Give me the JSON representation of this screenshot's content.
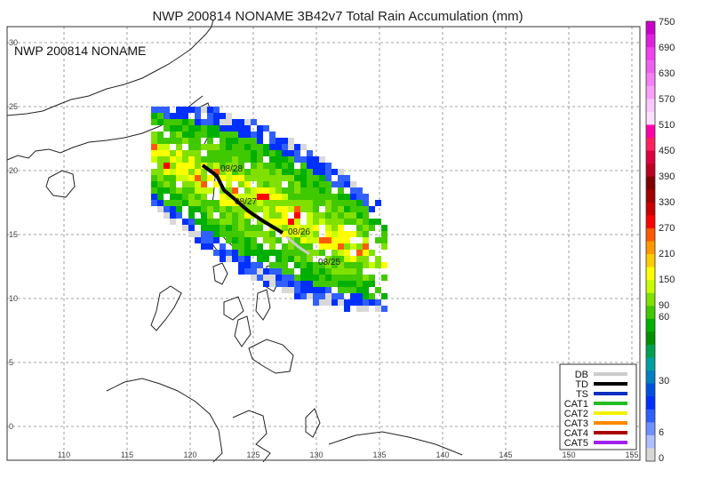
{
  "title": "NWP 200814 NONAME 3B42v7 Total Rain Accumulation (mm)",
  "inset_label": "NWP 200814 NONAME",
  "axes": {
    "x_ticks": [
      "110",
      "115",
      "120",
      "125",
      "130",
      "135",
      "140",
      "145",
      "150",
      "155"
    ],
    "y_ticks": [
      "30",
      "25",
      "20",
      "15",
      "10",
      "5",
      "0"
    ]
  },
  "track_dates": [
    "08/28",
    "08/27",
    "08/26",
    "08/25"
  ],
  "legend": {
    "items": [
      {
        "label": "DB",
        "color": "#cccccc"
      },
      {
        "label": "TD",
        "color": "#000000"
      },
      {
        "label": "TS",
        "color": "#0b2fbf"
      },
      {
        "label": "CAT1",
        "color": "#22bb22"
      },
      {
        "label": "CAT2",
        "color": "#f2f200"
      },
      {
        "label": "CAT3",
        "color": "#ff8800"
      },
      {
        "label": "CAT4",
        "color": "#aa0000"
      },
      {
        "label": "CAT5",
        "color": "#a020f0"
      }
    ]
  },
  "colorbar": {
    "labels": [
      "750",
      "690",
      "630",
      "570",
      "510",
      "450",
      "390",
      "330",
      "270",
      "210",
      "150",
      "90",
      "60",
      "30",
      "6",
      "0"
    ],
    "colors": [
      "#cc00cc",
      "#e020e0",
      "#f040f0",
      "#f060f0",
      "#f580f5",
      "#f8a0f8",
      "#fbc8fb",
      "#fde0fd",
      "#ff00aa",
      "#ff2060",
      "#dd0040",
      "#bb0020",
      "#800000",
      "#a00000",
      "#c80000",
      "#ff0000",
      "#ff5a00",
      "#ff9900",
      "#ffcc00",
      "#ffff00",
      "#c8ff00",
      "#80e000",
      "#40c800",
      "#00b000",
      "#009000",
      "#00a050",
      "#00a0a0",
      "#0080c0",
      "#0050e0",
      "#0030ff",
      "#3060ff",
      "#7090ff",
      "#b0c0ff",
      "#d8d8d8"
    ]
  }
}
